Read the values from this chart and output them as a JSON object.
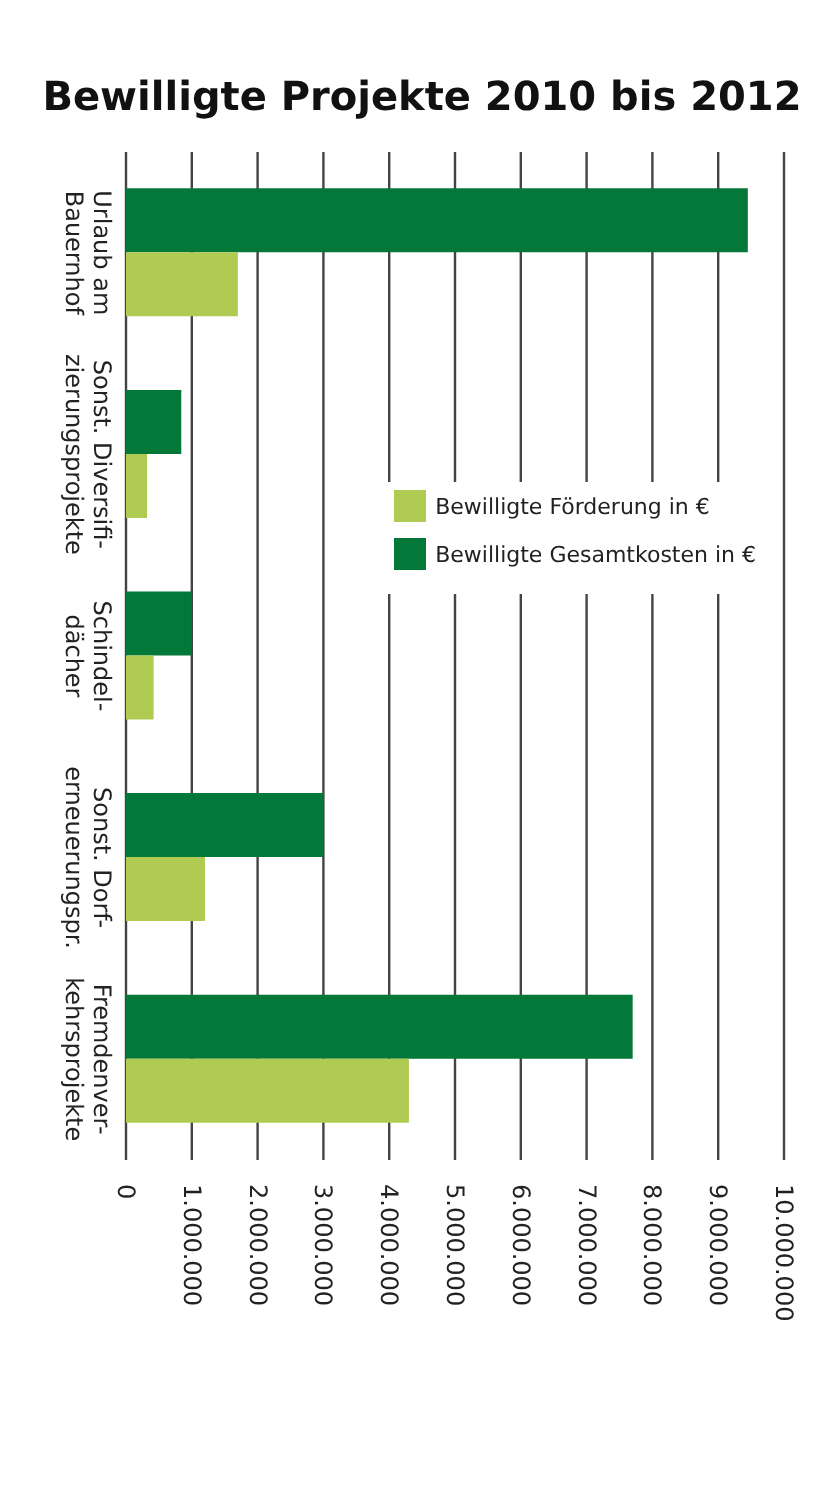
{
  "chart_data": {
    "type": "bar",
    "orientation": "horizontal",
    "title": "Bewilligte Projekte 2010 bis 2012",
    "categories": [
      "Urlaub am\nBauernhof",
      "Sonst. Diversifi-\nzierungsprojekte",
      "Schindel-\ndächer",
      "Sonst. Dorf-\nerneuerungspr.",
      "Fremdenver-\nkehrsprojekte"
    ],
    "series": [
      {
        "name": "Bewilligte Gesamtkosten in €",
        "color": "#037838",
        "values": [
          9450000,
          840000,
          1000000,
          3000000,
          7700000
        ]
      },
      {
        "name": "Bewilligte Förderung in €",
        "color": "#b0cb52",
        "values": [
          1700000,
          320000,
          420000,
          1200000,
          4300000
        ]
      }
    ],
    "xlim": [
      0,
      10000000
    ],
    "xticks": [
      {
        "value": 0,
        "label": "0"
      },
      {
        "value": 1000000,
        "label": "1.000.000"
      },
      {
        "value": 2000000,
        "label": "2.000.000"
      },
      {
        "value": 3000000,
        "label": "3.000.000"
      },
      {
        "value": 4000000,
        "label": "4.000.000"
      },
      {
        "value": 5000000,
        "label": "5.000.000"
      },
      {
        "value": 6000000,
        "label": "6.000.000"
      },
      {
        "value": 7000000,
        "label": "7.000.000"
      },
      {
        "value": 8000000,
        "label": "8.000.000"
      },
      {
        "value": 9000000,
        "label": "9.000.000"
      },
      {
        "value": 10000000,
        "label": "10.000.000"
      }
    ],
    "grid": "x",
    "legend": "top right"
  }
}
